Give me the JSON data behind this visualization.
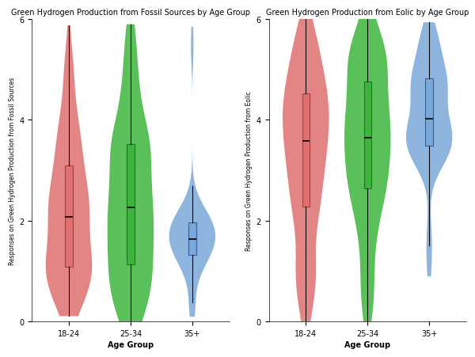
{
  "title_left": "Green Hydrogen Production from Fossil Sources by Age Group",
  "title_right": "Green Hydrogen Production from Eolic by Age Group",
  "xlabel": "Age Group",
  "ylabel_left": "Responses on Green Hydrogen Production from Fossil Sources",
  "ylabel_right": "Responses on Green Hydrogen Production from Eolic",
  "age_groups": [
    "18-24",
    "25-34",
    "35+"
  ],
  "colors": [
    "#E07070",
    "#3DB53D",
    "#7AA8D8"
  ],
  "colors_dark": [
    "#A04040",
    "#1A7A1A",
    "#3060A0"
  ],
  "ylim": [
    0,
    6
  ],
  "yticks": [
    0,
    2,
    4,
    6
  ],
  "background": "#FFFFFF",
  "figure_size": [
    6.0,
    4.52
  ],
  "dpi": 100
}
